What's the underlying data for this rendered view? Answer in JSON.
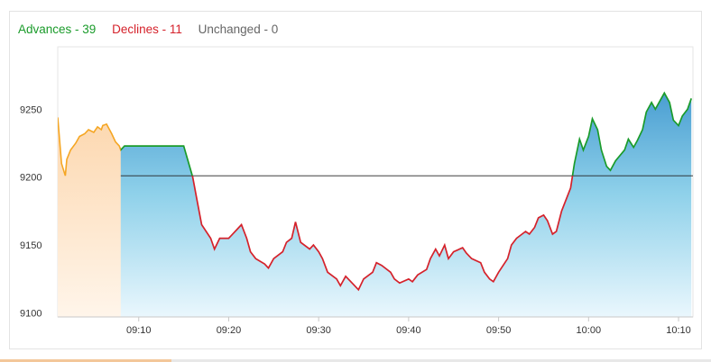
{
  "legend": {
    "advances": "Advances - 39",
    "declines": "Declines - 11",
    "unchanged": "Unchanged - 0"
  },
  "colors": {
    "advances": "#1a9b2a",
    "declines": "#d5222b",
    "unchanged": "#666666",
    "preopen": "#f5a623",
    "area_top": "#4a9ed2",
    "area_bottom": "#eaf7fd"
  },
  "chart_data": {
    "type": "area",
    "x_start": "09:01",
    "x_end": "10:11",
    "x_ticks": [
      "09:10",
      "09:20",
      "09:30",
      "09:40",
      "09:50",
      "10:00",
      "10:10"
    ],
    "y_ticks": [
      "9100",
      "9150",
      "9200",
      "9250"
    ],
    "ylim": [
      9097,
      9296
    ],
    "reference_line": 9201,
    "preopen_end": "09:08",
    "series": [
      {
        "values": [
          [
            "09:01",
            9244
          ],
          [
            "09:01",
            9210
          ],
          [
            "09:01",
            9201
          ],
          [
            "09:02",
            9213
          ],
          [
            "09:02",
            9220
          ],
          [
            "09:03",
            9225
          ],
          [
            "09:03",
            9230
          ],
          [
            "09:04",
            9232
          ],
          [
            "09:04",
            9235
          ],
          [
            "09:05",
            9233
          ],
          [
            "09:05",
            9237
          ],
          [
            "09:05",
            9235
          ],
          [
            "09:06",
            9238
          ],
          [
            "09:06",
            9239
          ],
          [
            "09:07",
            9232
          ],
          [
            "09:07",
            9226
          ],
          [
            "09:07",
            9223
          ],
          [
            "09:08",
            9220
          ],
          [
            "09:08",
            9223
          ],
          [
            "09:15",
            9223
          ],
          [
            "09:16",
            9200
          ],
          [
            "09:16",
            9185
          ],
          [
            "09:17",
            9165
          ],
          [
            "09:18",
            9155
          ],
          [
            "09:18",
            9147
          ],
          [
            "09:19",
            9155
          ],
          [
            "09:20",
            9155
          ],
          [
            "09:21",
            9162
          ],
          [
            "09:21",
            9165
          ],
          [
            "09:22",
            9155
          ],
          [
            "09:22",
            9145
          ],
          [
            "09:23",
            9140
          ],
          [
            "09:24",
            9136
          ],
          [
            "09:24",
            9133
          ],
          [
            "09:25",
            9140
          ],
          [
            "09:26",
            9145
          ],
          [
            "09:26",
            9152
          ],
          [
            "09:27",
            9155
          ],
          [
            "09:27",
            9167
          ],
          [
            "09:28",
            9152
          ],
          [
            "09:29",
            9147
          ],
          [
            "09:29",
            9150
          ],
          [
            "09:30",
            9145
          ],
          [
            "09:30",
            9140
          ],
          [
            "09:31",
            9130
          ],
          [
            "09:32",
            9125
          ],
          [
            "09:32",
            9120
          ],
          [
            "09:33",
            9127
          ],
          [
            "09:34",
            9120
          ],
          [
            "09:34",
            9117
          ],
          [
            "09:35",
            9125
          ],
          [
            "09:36",
            9130
          ],
          [
            "09:36",
            9137
          ],
          [
            "09:37",
            9135
          ],
          [
            "09:38",
            9130
          ],
          [
            "09:38",
            9125
          ],
          [
            "09:39",
            9122
          ],
          [
            "09:40",
            9125
          ],
          [
            "09:40",
            9123
          ],
          [
            "09:41",
            9128
          ],
          [
            "09:42",
            9132
          ],
          [
            "09:42",
            9140
          ],
          [
            "09:43",
            9147
          ],
          [
            "09:43",
            9142
          ],
          [
            "09:44",
            9150
          ],
          [
            "09:44",
            9140
          ],
          [
            "09:45",
            9145
          ],
          [
            "09:46",
            9148
          ],
          [
            "09:46",
            9144
          ],
          [
            "09:47",
            9140
          ],
          [
            "09:48",
            9137
          ],
          [
            "09:48",
            9130
          ],
          [
            "09:49",
            9125
          ],
          [
            "09:49",
            9123
          ],
          [
            "09:50",
            9130
          ],
          [
            "09:51",
            9140
          ],
          [
            "09:51",
            9150
          ],
          [
            "09:52",
            9155
          ],
          [
            "09:53",
            9160
          ],
          [
            "09:53",
            9158
          ],
          [
            "09:54",
            9163
          ],
          [
            "09:54",
            9170
          ],
          [
            "09:55",
            9172
          ],
          [
            "09:55",
            9168
          ],
          [
            "09:56",
            9158
          ],
          [
            "09:56",
            9160
          ],
          [
            "09:57",
            9175
          ],
          [
            "09:58",
            9192
          ],
          [
            "09:58",
            9210
          ],
          [
            "09:59",
            9228
          ],
          [
            "09:59",
            9220
          ],
          [
            "10:00",
            9230
          ],
          [
            "10:00",
            9243
          ],
          [
            "10:01",
            9235
          ],
          [
            "10:01",
            9220
          ],
          [
            "10:02",
            9208
          ],
          [
            "10:02",
            9205
          ],
          [
            "10:03",
            9212
          ],
          [
            "10:04",
            9220
          ],
          [
            "10:04",
            9228
          ],
          [
            "10:05",
            9222
          ],
          [
            "10:05",
            9227
          ],
          [
            "10:06",
            9235
          ],
          [
            "10:06",
            9248
          ],
          [
            "10:07",
            9255
          ],
          [
            "10:07",
            9250
          ],
          [
            "10:08",
            9257
          ],
          [
            "10:08",
            9262
          ],
          [
            "10:09",
            9255
          ],
          [
            "10:09",
            9242
          ],
          [
            "10:10",
            9238
          ],
          [
            "10:10",
            9245
          ],
          [
            "10:11",
            9250
          ],
          [
            "10:11",
            9258
          ]
        ]
      }
    ],
    "grid": false,
    "legend_position": "top-left"
  }
}
